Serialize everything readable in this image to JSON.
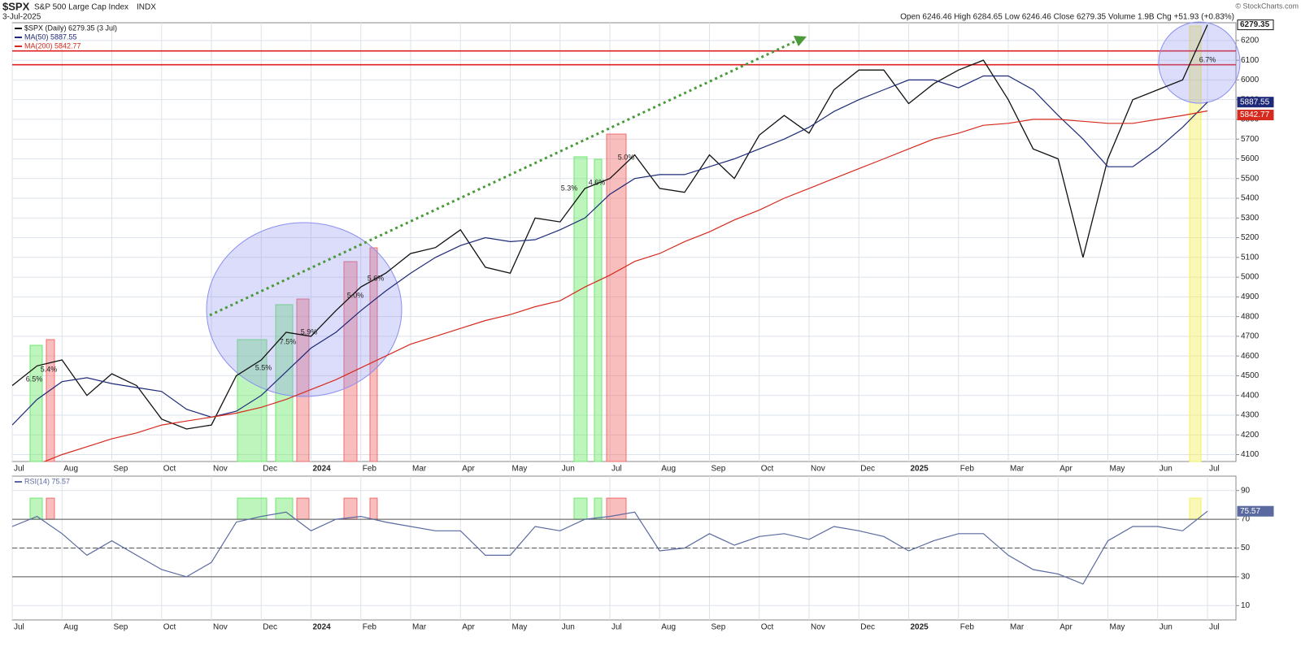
{
  "header": {
    "symbol": "$SPX",
    "name": "S&P 500 Large Cap Index",
    "exchange": "INDX",
    "date": "3-Jul-2025",
    "quote": "Open 6246.46  High 6284.65  Low 6246.46  Close 6279.35  Volume 1.9B  Chg +51.93 (+0.83%)",
    "credit": "© StockCharts.com"
  },
  "chart_data": [
    {
      "type": "line",
      "categories": [
        "Jul",
        null,
        "Aug",
        null,
        "Sep",
        null,
        "Oct",
        null,
        "Nov",
        null,
        "Dec",
        null,
        "2024",
        null,
        "Feb",
        null,
        "Mar",
        null,
        "Apr",
        null,
        "May",
        null,
        "Jun",
        null,
        "Jul",
        null,
        "Aug",
        null,
        "Sep",
        null,
        "Oct",
        null,
        "Nov",
        null,
        "Dec",
        null,
        "2025",
        null,
        "Feb",
        null,
        "Mar",
        null,
        "Apr",
        null,
        "May",
        null,
        "Jun",
        null,
        "Jul"
      ],
      "series": [
        {
          "name": "$SPX (Daily) 6279.35 (3 Jul)",
          "color": "#111111",
          "value_label": "6279.35",
          "values": [
            4450,
            4550,
            4580,
            4400,
            4510,
            4450,
            4280,
            4230,
            4250,
            4500,
            4580,
            4720,
            4700,
            4830,
            4950,
            5020,
            5120,
            5150,
            5240,
            5050,
            5020,
            5300,
            5280,
            5450,
            5500,
            5620,
            5450,
            5430,
            5620,
            5500,
            5720,
            5820,
            5730,
            5950,
            6050,
            6050,
            5880,
            5980,
            6050,
            6100,
            5900,
            5650,
            5600,
            5100,
            5600,
            5900,
            5950,
            6000,
            6279.35
          ]
        },
        {
          "name": "MA(50) 5887.55",
          "color": "#1e2a78",
          "value_label": "5887.55",
          "values": [
            4250,
            4380,
            4470,
            4490,
            4460,
            4440,
            4420,
            4330,
            4290,
            4320,
            4400,
            4520,
            4640,
            4720,
            4830,
            4930,
            5020,
            5100,
            5160,
            5200,
            5180,
            5190,
            5240,
            5300,
            5420,
            5500,
            5520,
            5520,
            5560,
            5600,
            5650,
            5700,
            5760,
            5840,
            5900,
            5950,
            6000,
            6000,
            5960,
            6020,
            6020,
            5950,
            5820,
            5700,
            5560,
            5560,
            5650,
            5760,
            5887.55
          ]
        },
        {
          "name": "MA(200) 5842.77",
          "color": "#d62a1e",
          "value_label": "5842.77",
          "values": [
            4000,
            4050,
            4100,
            4140,
            4180,
            4210,
            4250,
            4270,
            4290,
            4310,
            4340,
            4380,
            4430,
            4480,
            4540,
            4600,
            4660,
            4700,
            4740,
            4780,
            4810,
            4850,
            4880,
            4950,
            5010,
            5080,
            5120,
            5180,
            5230,
            5290,
            5340,
            5400,
            5450,
            5500,
            5550,
            5600,
            5650,
            5700,
            5730,
            5770,
            5780,
            5800,
            5800,
            5790,
            5780,
            5780,
            5800,
            5820,
            5842.77
          ]
        }
      ],
      "ylim": [
        4065,
        6290
      ],
      "yticks": [
        4100,
        4200,
        4300,
        4400,
        4500,
        4600,
        4700,
        4800,
        4900,
        5000,
        5100,
        5200,
        5300,
        5400,
        5500,
        5600,
        5700,
        5800,
        5900,
        6000,
        6100,
        6200
      ],
      "hlines": [
        6147,
        6077
      ],
      "hline_color": "#e02020",
      "annotations": [
        "6.5%",
        "5.4%",
        "5.5%",
        "7.5%",
        "5.9%",
        "5.0%",
        "5.6%",
        "5.3%",
        "4.6%",
        "5.0%",
        "6.7%"
      ],
      "grid": true
    },
    {
      "type": "line",
      "series": [
        {
          "name": "RSI(14) 75.57",
          "color": "#5a6aa0",
          "value_label": "75.57",
          "values": [
            65,
            72,
            60,
            45,
            55,
            45,
            35,
            30,
            40,
            68,
            72,
            75,
            62,
            70,
            72,
            68,
            65,
            62,
            62,
            45,
            45,
            65,
            62,
            70,
            72,
            75,
            48,
            50,
            60,
            52,
            58,
            60,
            56,
            65,
            62,
            58,
            48,
            55,
            60,
            60,
            45,
            35,
            32,
            25,
            55,
            65,
            65,
            62,
            75.57
          ]
        }
      ],
      "ylim": [
        0,
        100
      ],
      "yticks": [
        10,
        30,
        50,
        70,
        90
      ],
      "grid": true
    }
  ]
}
